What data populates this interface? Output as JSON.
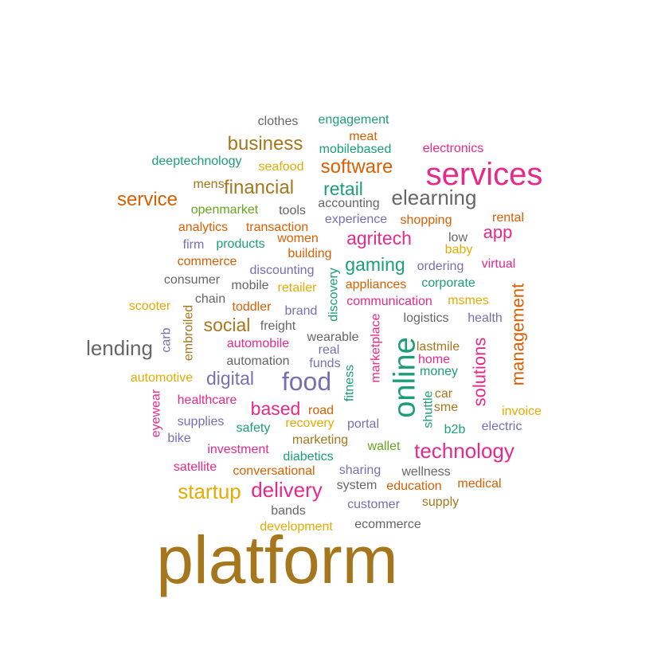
{
  "palette": {
    "teal": "#1b9e77",
    "orange": "#d95f02",
    "purple": "#7570b3",
    "pink": "#e7298a",
    "green": "#66a61e",
    "gold": "#e6ab02",
    "brown": "#a6761d",
    "gray": "#666666"
  },
  "words": [
    {
      "text": "platform",
      "color": "brown"
    },
    {
      "text": "services",
      "color": "pink"
    },
    {
      "text": "online",
      "color": "teal"
    },
    {
      "text": "food",
      "color": "purple"
    },
    {
      "text": "technology",
      "color": "pink"
    },
    {
      "text": "elearning",
      "color": "gray"
    },
    {
      "text": "lending",
      "color": "gray"
    },
    {
      "text": "delivery",
      "color": "pink"
    },
    {
      "text": "startup",
      "color": "gold"
    },
    {
      "text": "business",
      "color": "brown"
    },
    {
      "text": "financial",
      "color": "brown"
    },
    {
      "text": "software",
      "color": "orange"
    },
    {
      "text": "service",
      "color": "orange"
    },
    {
      "text": "retail",
      "color": "teal"
    },
    {
      "text": "agritech",
      "color": "pink"
    },
    {
      "text": "gaming",
      "color": "teal"
    },
    {
      "text": "social",
      "color": "brown"
    },
    {
      "text": "digital",
      "color": "purple"
    },
    {
      "text": "based",
      "color": "pink"
    },
    {
      "text": "management",
      "color": "orange"
    },
    {
      "text": "solutions",
      "color": "pink"
    },
    {
      "text": "app",
      "color": "pink"
    },
    {
      "text": "clothes",
      "color": "gray"
    },
    {
      "text": "engagement",
      "color": "teal"
    },
    {
      "text": "meat",
      "color": "orange"
    },
    {
      "text": "mobilebased",
      "color": "teal"
    },
    {
      "text": "electronics",
      "color": "pink"
    },
    {
      "text": "deeptechnology",
      "color": "teal"
    },
    {
      "text": "seafood",
      "color": "gold"
    },
    {
      "text": "mens",
      "color": "brown"
    },
    {
      "text": "accounting",
      "color": "gray"
    },
    {
      "text": "openmarket",
      "color": "green"
    },
    {
      "text": "tools",
      "color": "gray"
    },
    {
      "text": "experience",
      "color": "purple"
    },
    {
      "text": "shopping",
      "color": "orange"
    },
    {
      "text": "rental",
      "color": "orange"
    },
    {
      "text": "analytics",
      "color": "orange"
    },
    {
      "text": "transaction",
      "color": "orange"
    },
    {
      "text": "firm",
      "color": "purple"
    },
    {
      "text": "products",
      "color": "teal"
    },
    {
      "text": "women",
      "color": "orange"
    },
    {
      "text": "low",
      "color": "gray"
    },
    {
      "text": "baby",
      "color": "gold"
    },
    {
      "text": "building",
      "color": "orange"
    },
    {
      "text": "commerce",
      "color": "orange"
    },
    {
      "text": "discounting",
      "color": "purple"
    },
    {
      "text": "ordering",
      "color": "purple"
    },
    {
      "text": "virtual",
      "color": "pink"
    },
    {
      "text": "consumer",
      "color": "gray"
    },
    {
      "text": "mobile",
      "color": "gray"
    },
    {
      "text": "retailer",
      "color": "gold"
    },
    {
      "text": "appliances",
      "color": "orange"
    },
    {
      "text": "corporate",
      "color": "teal"
    },
    {
      "text": "discovery",
      "color": "teal"
    },
    {
      "text": "scooter",
      "color": "gold"
    },
    {
      "text": "chain",
      "color": "gray"
    },
    {
      "text": "toddler",
      "color": "orange"
    },
    {
      "text": "brand",
      "color": "purple"
    },
    {
      "text": "communication",
      "color": "pink"
    },
    {
      "text": "msmes",
      "color": "gold"
    },
    {
      "text": "embroiled",
      "color": "brown"
    },
    {
      "text": "carb",
      "color": "purple"
    },
    {
      "text": "freight",
      "color": "gray"
    },
    {
      "text": "logistics",
      "color": "gray"
    },
    {
      "text": "health",
      "color": "purple"
    },
    {
      "text": "wearable",
      "color": "gray"
    },
    {
      "text": "automobile",
      "color": "pink"
    },
    {
      "text": "real",
      "color": "purple"
    },
    {
      "text": "marketplace",
      "color": "pink"
    },
    {
      "text": "lastmile",
      "color": "brown"
    },
    {
      "text": "automation",
      "color": "gray"
    },
    {
      "text": "funds",
      "color": "purple"
    },
    {
      "text": "home",
      "color": "pink"
    },
    {
      "text": "money",
      "color": "teal"
    },
    {
      "text": "fitness",
      "color": "teal"
    },
    {
      "text": "automotive",
      "color": "gold"
    },
    {
      "text": "eyewear",
      "color": "pink"
    },
    {
      "text": "healthcare",
      "color": "pink"
    },
    {
      "text": "road",
      "color": "orange"
    },
    {
      "text": "car",
      "color": "brown"
    },
    {
      "text": "sme",
      "color": "brown"
    },
    {
      "text": "shuttle",
      "color": "teal"
    },
    {
      "text": "invoice",
      "color": "gold"
    },
    {
      "text": "supplies",
      "color": "purple"
    },
    {
      "text": "safety",
      "color": "teal"
    },
    {
      "text": "recovery",
      "color": "gold"
    },
    {
      "text": "portal",
      "color": "purple"
    },
    {
      "text": "b2b",
      "color": "teal"
    },
    {
      "text": "electric",
      "color": "purple"
    },
    {
      "text": "bike",
      "color": "purple"
    },
    {
      "text": "marketing",
      "color": "brown"
    },
    {
      "text": "wallet",
      "color": "green"
    },
    {
      "text": "investment",
      "color": "pink"
    },
    {
      "text": "diabetics",
      "color": "teal"
    },
    {
      "text": "satellite",
      "color": "pink"
    },
    {
      "text": "conversational",
      "color": "orange"
    },
    {
      "text": "sharing",
      "color": "purple"
    },
    {
      "text": "wellness",
      "color": "gray"
    },
    {
      "text": "system",
      "color": "gray"
    },
    {
      "text": "education",
      "color": "orange"
    },
    {
      "text": "medical",
      "color": "orange"
    },
    {
      "text": "bands",
      "color": "gray"
    },
    {
      "text": "customer",
      "color": "purple"
    },
    {
      "text": "supply",
      "color": "brown"
    },
    {
      "text": "development",
      "color": "gold"
    },
    {
      "text": "ecommerce",
      "color": "gray"
    }
  ]
}
